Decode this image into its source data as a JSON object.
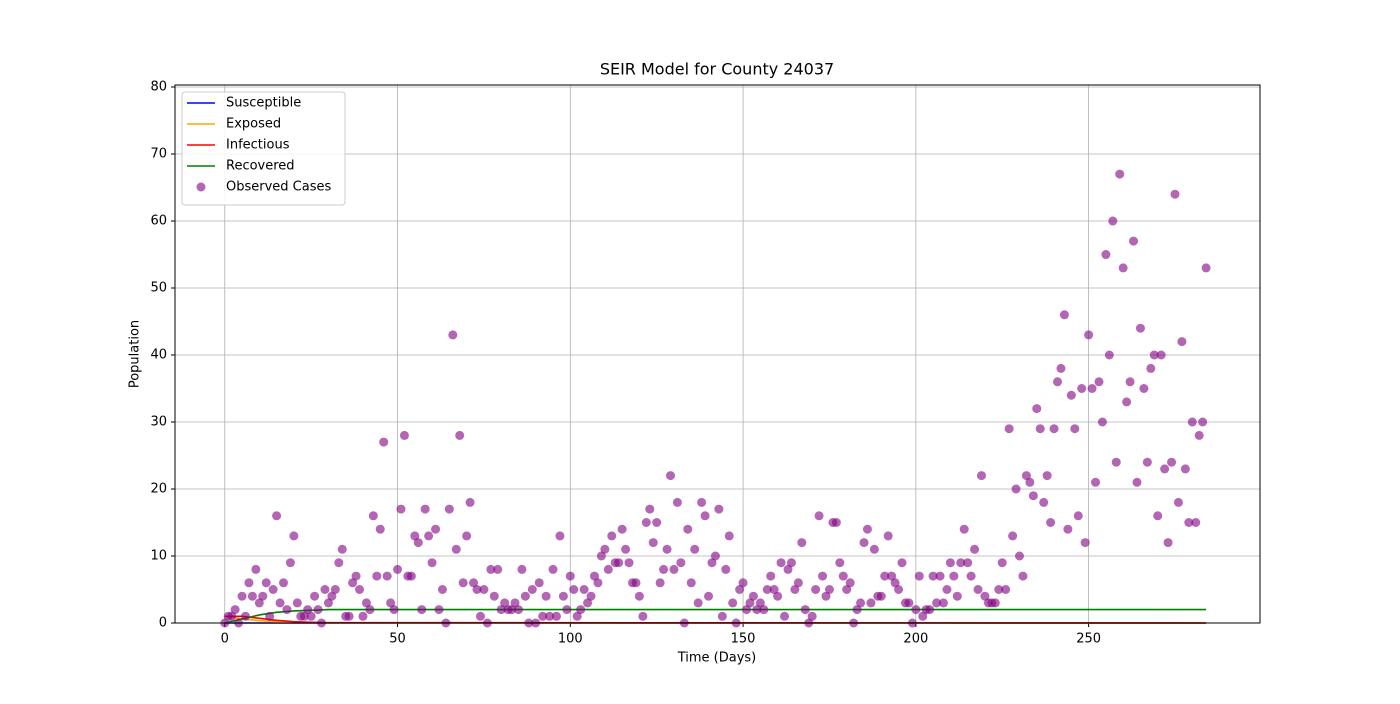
{
  "chart_data": {
    "type": "line",
    "title": "SEIR Model for County 24037",
    "xlabel": "Time (Days)",
    "ylabel": "Population",
    "xlim": [
      -14.4,
      299.6
    ],
    "ylim": [
      0,
      80.3
    ],
    "xticks": [
      0,
      50,
      100,
      150,
      200,
      250
    ],
    "yticks": [
      0,
      10,
      20,
      30,
      40,
      50,
      60,
      70,
      80
    ],
    "grid": true,
    "legend": "upper left",
    "series": [
      {
        "name": "Susceptible",
        "type": "line",
        "color": "#0000ff",
        "x": [
          0,
          5,
          10,
          15,
          20,
          25,
          30,
          284
        ],
        "values": [
          0,
          0,
          0,
          0,
          0,
          0,
          0,
          0
        ]
      },
      {
        "name": "Exposed",
        "type": "line",
        "color": "#ffa500",
        "x": [
          0,
          5,
          10,
          15,
          20,
          25,
          30,
          284
        ],
        "values": [
          1,
          0.6,
          0.35,
          0.2,
          0.1,
          0.05,
          0,
          0
        ]
      },
      {
        "name": "Infectious",
        "type": "line",
        "color": "#ff0000",
        "x": [
          0,
          5,
          10,
          15,
          20,
          25,
          30,
          284
        ],
        "values": [
          1,
          1,
          0.7,
          0.4,
          0.2,
          0.1,
          0.05,
          0
        ]
      },
      {
        "name": "Recovered",
        "type": "line",
        "color": "#008000",
        "x": [
          0,
          5,
          10,
          15,
          20,
          25,
          30,
          284
        ],
        "values": [
          0,
          0.6,
          1.2,
          1.6,
          1.8,
          1.9,
          2,
          2
        ]
      },
      {
        "name": "Observed Cases",
        "type": "scatter",
        "color": "#800080",
        "x": [
          0,
          1,
          2,
          3,
          4,
          5,
          6,
          7,
          8,
          9,
          10,
          11,
          12,
          13,
          14,
          15,
          16,
          17,
          18,
          19,
          20,
          21,
          22,
          23,
          24,
          25,
          26,
          27,
          28,
          29,
          30,
          31,
          32,
          33,
          34,
          35,
          36,
          37,
          38,
          39,
          40,
          41,
          42,
          43,
          44,
          45,
          46,
          47,
          48,
          49,
          50,
          51,
          52,
          53,
          54,
          55,
          56,
          57,
          58,
          59,
          60,
          61,
          62,
          63,
          64,
          65,
          66,
          67,
          68,
          69,
          70,
          71,
          72,
          73,
          74,
          75,
          76,
          77,
          78,
          79,
          80,
          81,
          82,
          83,
          84,
          85,
          86,
          87,
          88,
          89,
          90,
          91,
          92,
          93,
          94,
          95,
          96,
          97,
          98,
          99,
          100,
          101,
          102,
          103,
          104,
          105,
          106,
          107,
          108,
          109,
          110,
          111,
          112,
          113,
          114,
          115,
          116,
          117,
          118,
          119,
          120,
          121,
          122,
          123,
          124,
          125,
          126,
          127,
          128,
          129,
          130,
          131,
          132,
          133,
          134,
          135,
          136,
          137,
          138,
          139,
          140,
          141,
          142,
          143,
          144,
          145,
          146,
          147,
          148,
          149,
          150,
          151,
          152,
          153,
          154,
          155,
          156,
          157,
          158,
          159,
          160,
          161,
          162,
          163,
          164,
          165,
          166,
          167,
          168,
          169,
          170,
          171,
          172,
          173,
          174,
          175,
          176,
          177,
          178,
          179,
          180,
          181,
          182,
          183,
          184,
          185,
          186,
          187,
          188,
          189,
          190,
          191,
          192,
          193,
          194,
          195,
          196,
          197,
          198,
          199,
          200,
          201,
          202,
          203,
          204,
          205,
          206,
          207,
          208,
          209,
          210,
          211,
          212,
          213,
          214,
          215,
          216,
          217,
          218,
          219,
          220,
          221,
          222,
          223,
          224,
          225,
          226,
          227,
          228,
          229,
          230,
          231,
          232,
          233,
          234,
          235,
          236,
          237,
          238,
          239,
          240,
          241,
          242,
          243,
          244,
          245,
          246,
          247,
          248,
          249,
          250,
          251,
          252,
          253,
          254,
          255,
          256,
          257,
          258,
          259,
          260,
          261,
          262,
          263,
          264,
          265,
          266,
          267,
          268,
          269,
          270,
          271,
          272,
          273,
          274,
          275,
          276,
          277,
          278,
          279,
          280,
          281,
          282,
          283,
          284
        ],
        "values": [
          0,
          1,
          1,
          2,
          0,
          4,
          1,
          6,
          4,
          8,
          3,
          4,
          6,
          1,
          5,
          16,
          3,
          6,
          2,
          9,
          13,
          3,
          1,
          1,
          2,
          1,
          4,
          2,
          0,
          5,
          3,
          4,
          5,
          9,
          11,
          1,
          1,
          6,
          7,
          5,
          1,
          3,
          2,
          16,
          7,
          14,
          27,
          7,
          3,
          2,
          8,
          17,
          28,
          7,
          7,
          13,
          12,
          2,
          17,
          13,
          9,
          14,
          2,
          5,
          0,
          17,
          43,
          11,
          28,
          6,
          13,
          18,
          6,
          5,
          1,
          5,
          0,
          8,
          4,
          8,
          2,
          3,
          2,
          2,
          3,
          2,
          8,
          4,
          0,
          5,
          0,
          6,
          1,
          4,
          1,
          8,
          1,
          13,
          4,
          2,
          7,
          5,
          1,
          2,
          5,
          3,
          4,
          7,
          6,
          10,
          11,
          8,
          13,
          9,
          9,
          14,
          11,
          9,
          6,
          6,
          4,
          1,
          15,
          17,
          12,
          15,
          6,
          8,
          11,
          22,
          8,
          18,
          9,
          0,
          14,
          6,
          11,
          3,
          18,
          16,
          4,
          9,
          10,
          17,
          1,
          8,
          13,
          3,
          0,
          5,
          6,
          2,
          3,
          4,
          2,
          3,
          2,
          5,
          7,
          5,
          4,
          9,
          1,
          8,
          9,
          5,
          6,
          12,
          2,
          0,
          1,
          5,
          16,
          7,
          4,
          5,
          15,
          15,
          9,
          7,
          5,
          6,
          0,
          2,
          3,
          12,
          14,
          3,
          11,
          4,
          4,
          7,
          13,
          7,
          6,
          5,
          9,
          3,
          3,
          0,
          2,
          7,
          1,
          2,
          2,
          7,
          3,
          7,
          3,
          5,
          9,
          7,
          4,
          9,
          14,
          9,
          7,
          11,
          5,
          22,
          4,
          3,
          3,
          3,
          5,
          9,
          5,
          29,
          13,
          20,
          10,
          7,
          22,
          21,
          19,
          32,
          29,
          18,
          22,
          15,
          29,
          36,
          38,
          46,
          14,
          34,
          29,
          16,
          35,
          12,
          43,
          35,
          21,
          36,
          30,
          55,
          40,
          60,
          24,
          67,
          53,
          33,
          36,
          57,
          21,
          44,
          35,
          24,
          38,
          40,
          16,
          40,
          23,
          12,
          24,
          64,
          18,
          42,
          23,
          15,
          30,
          15,
          28,
          30,
          53
        ]
      }
    ]
  }
}
